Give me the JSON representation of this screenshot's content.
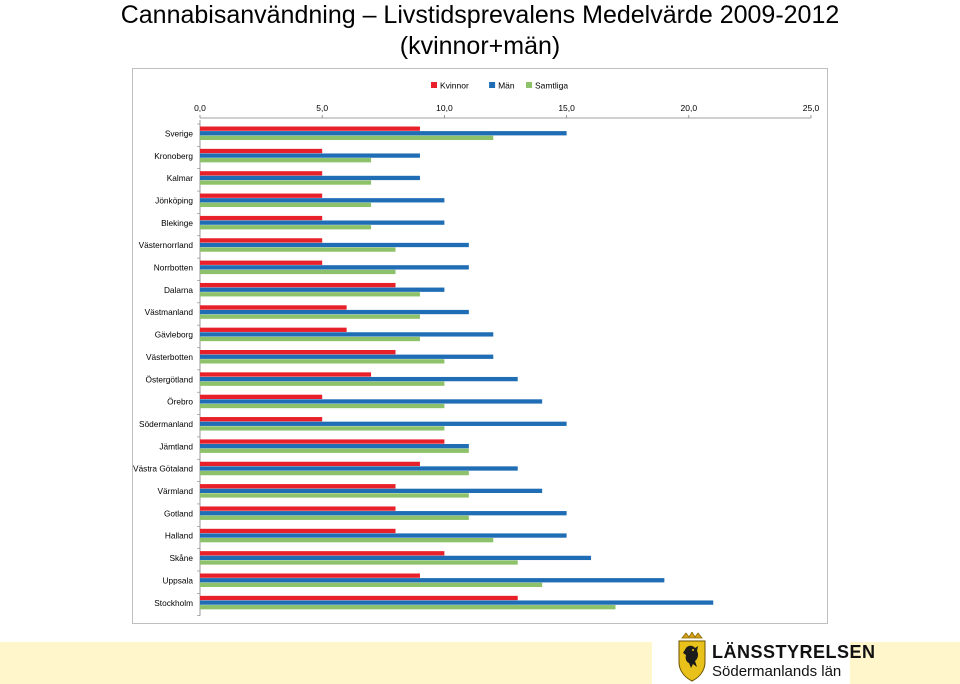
{
  "slide": {
    "title_line1": "Cannabisanvändning – Livstidsprevalens Medelvärde 2009-2012",
    "title_line2": "(kvinnor+män)"
  },
  "logo": {
    "name_line1": "LÄNSSTYRELSEN",
    "name_line2": "Södermanlands län"
  },
  "colors": {
    "kvinnor": "#e8202a",
    "man": "#1f6db5",
    "samtliga": "#8dc26a",
    "band": "#fff6cc"
  },
  "chart_data": {
    "type": "bar",
    "orientation": "horizontal",
    "legend_position": "top",
    "xlim": [
      0,
      25
    ],
    "x_ticks": [
      "0,0",
      "5,0",
      "10,0",
      "15,0",
      "20,0",
      "25,0"
    ],
    "grid": false,
    "categories": [
      "Sverige",
      "Kronoberg",
      "Kalmar",
      "Jönköping",
      "Blekinge",
      "Västernorrland",
      "Norrbotten",
      "Dalarna",
      "Västmanland",
      "Gävleborg",
      "Västerbotten",
      "Östergötland",
      "Örebro",
      "Södermanland",
      "Jämtland",
      "Västra Götaland",
      "Värmland",
      "Gotland",
      "Halland",
      "Skåne",
      "Uppsala",
      "Stockholm"
    ],
    "series": [
      {
        "name": "Kvinnor",
        "color": "#e8202a",
        "values": [
          9,
          5,
          5,
          5,
          5,
          5,
          5,
          8,
          6,
          6,
          8,
          7,
          5,
          5,
          10,
          9,
          8,
          8,
          8,
          10,
          9,
          13
        ]
      },
      {
        "name": "Män",
        "color": "#1f6db5",
        "values": [
          15,
          9,
          9,
          10,
          10,
          11,
          11,
          10,
          11,
          12,
          12,
          13,
          14,
          15,
          11,
          13,
          14,
          15,
          15,
          16,
          19,
          21
        ]
      },
      {
        "name": "Samtliga",
        "color": "#8dc26a",
        "values": [
          12,
          7,
          7,
          7,
          7,
          8,
          8,
          9,
          9,
          9,
          10,
          10,
          10,
          10,
          11,
          11,
          11,
          11,
          12,
          13,
          14,
          17
        ]
      }
    ]
  }
}
